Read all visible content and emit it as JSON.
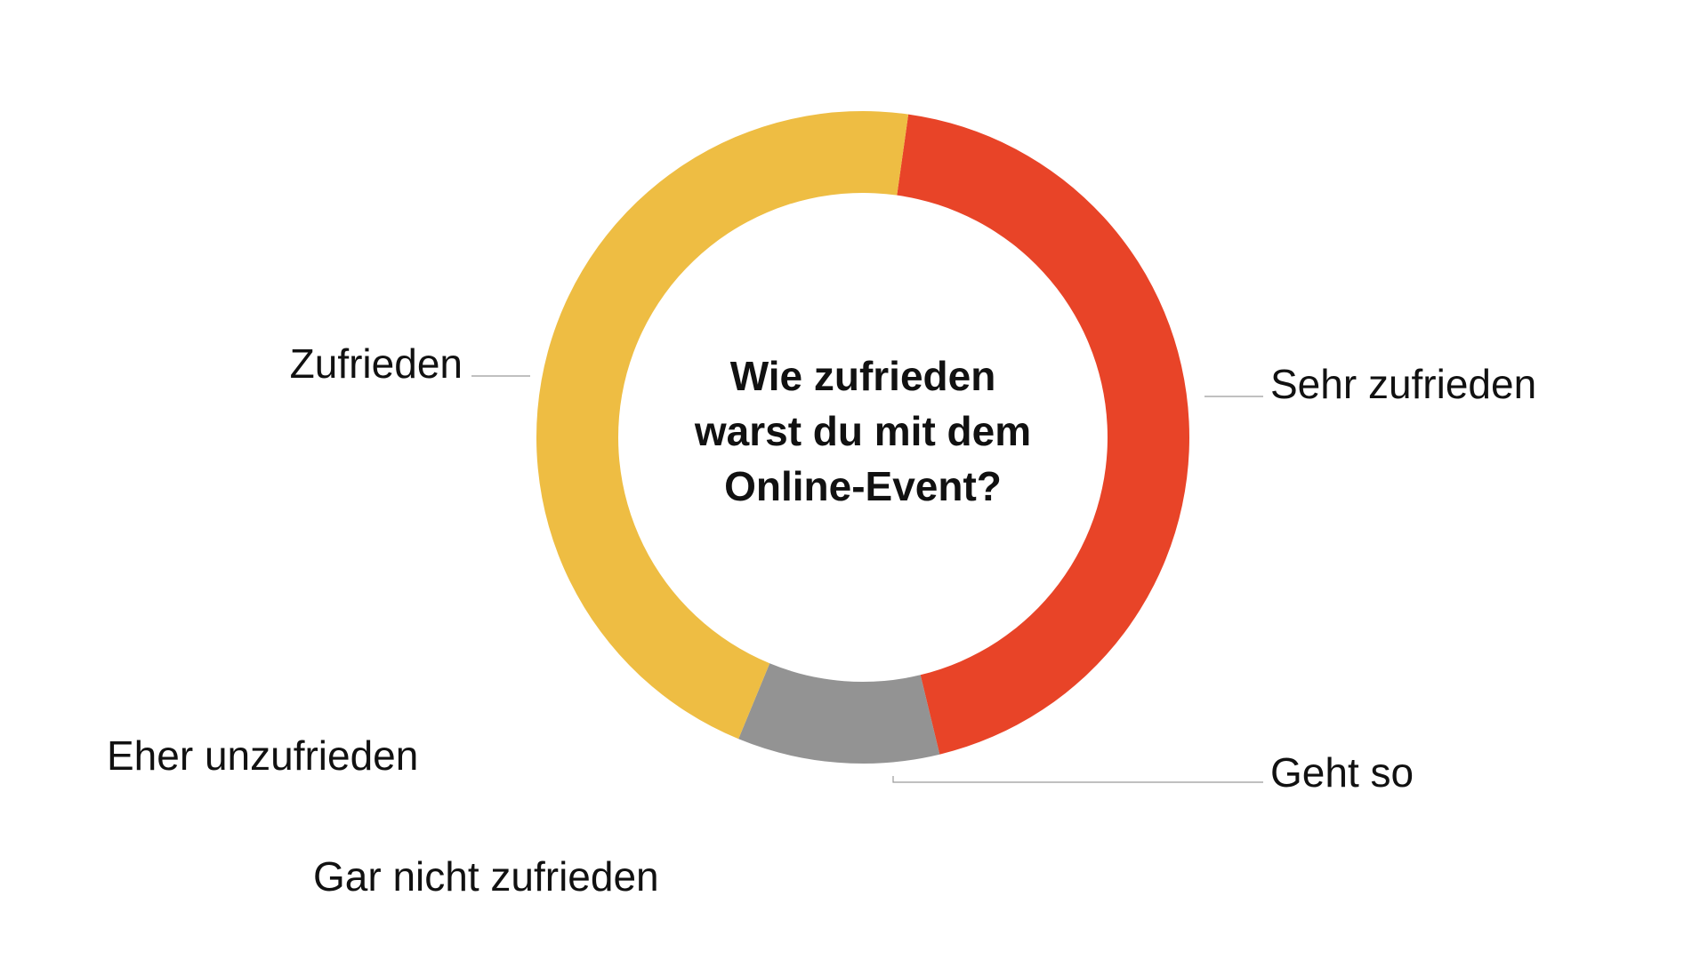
{
  "chart_data": {
    "type": "pie",
    "variant": "donut",
    "center_text": [
      "Wie zufrieden",
      "warst du mit dem",
      "Online-Event?"
    ],
    "slices": [
      {
        "label": "Sehr zufrieden",
        "value": 44,
        "color": "#e84428"
      },
      {
        "label": "Geht so",
        "value": 10,
        "color": "#939393"
      },
      {
        "label": "Gar nicht zufrieden",
        "value": 0,
        "color": "#5b5b5b"
      },
      {
        "label": "Eher unzufrieden",
        "value": 0,
        "color": "#b0b0b0"
      },
      {
        "label": "Zufrieden",
        "value": 46,
        "color": "#eebd43"
      }
    ]
  }
}
